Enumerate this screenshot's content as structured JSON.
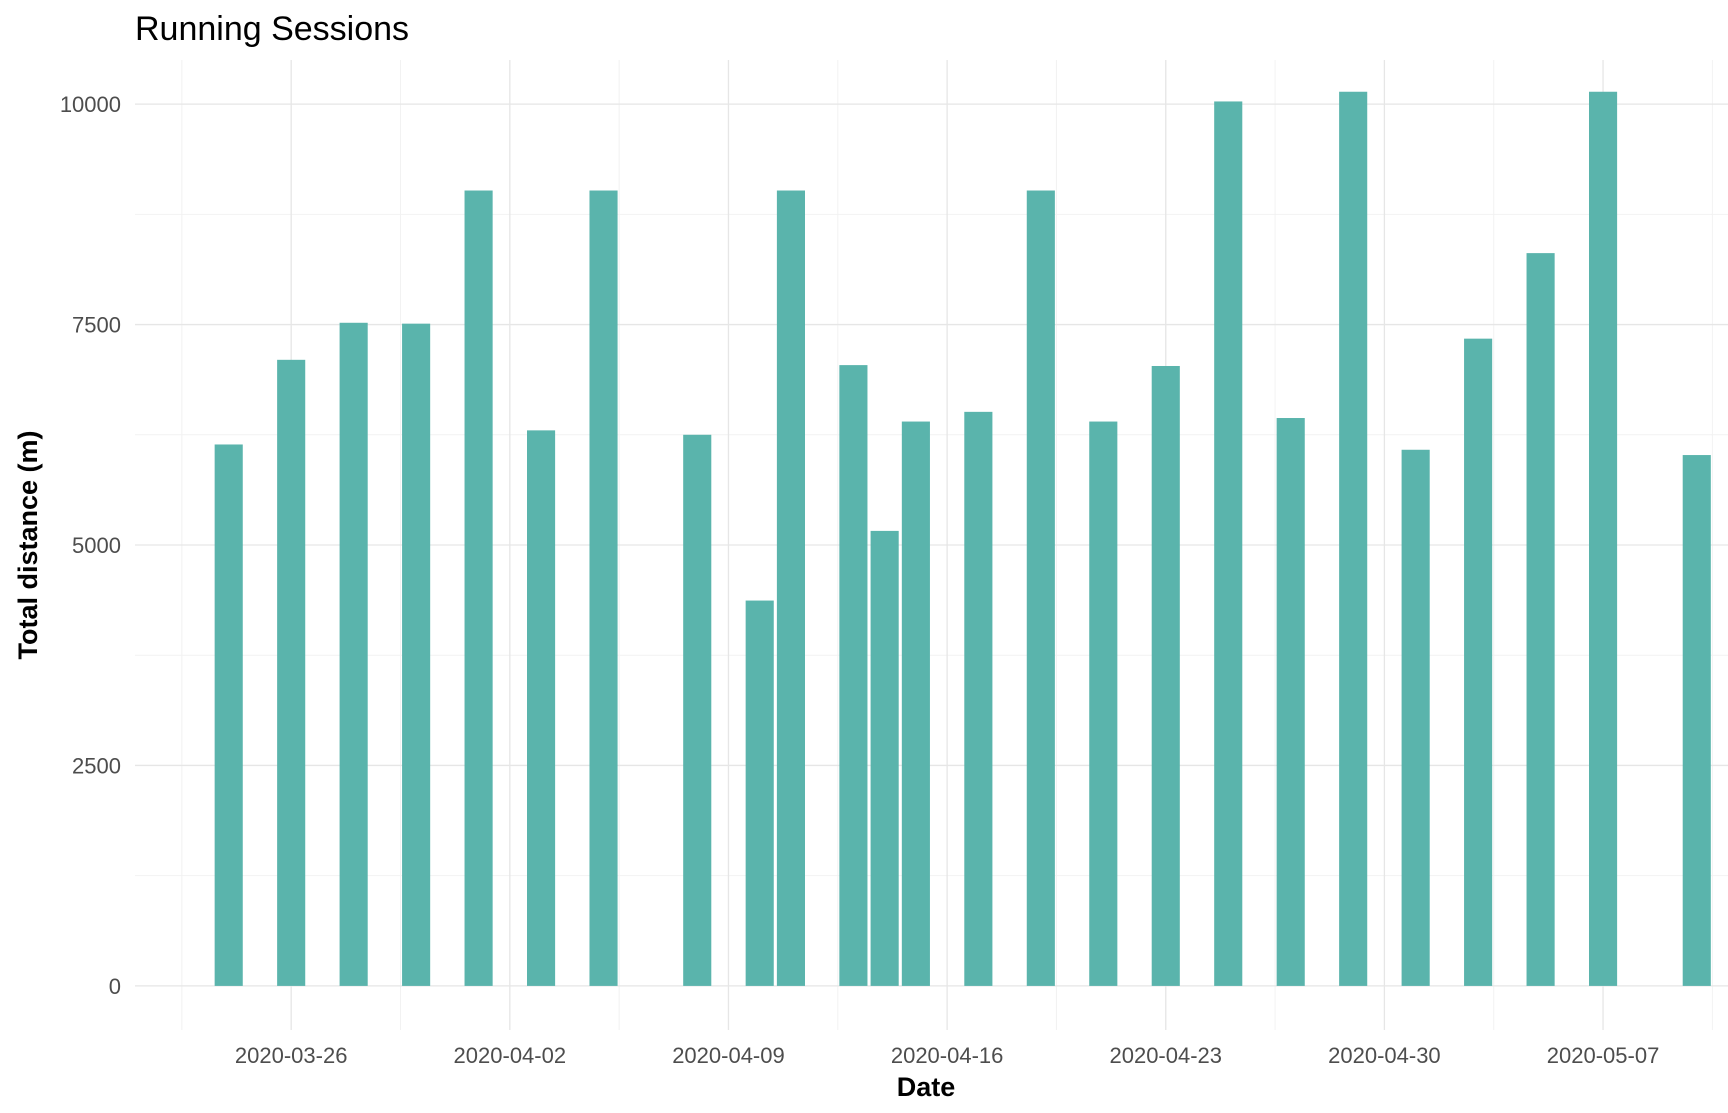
{
  "chart_data": {
    "type": "bar",
    "title": "Running Sessions",
    "xlabel": "Date",
    "ylabel": "Total distance (m)",
    "x_axis": "date",
    "xlim": [
      "2020-03-21",
      "2020-05-11"
    ],
    "ylim": [
      -500,
      10500
    ],
    "y_ticks": [
      0,
      2500,
      5000,
      7500,
      10000
    ],
    "x_ticks": [
      "2020-03-26",
      "2020-04-02",
      "2020-04-09",
      "2020-04-16",
      "2020-04-23",
      "2020-04-30",
      "2020-05-07"
    ],
    "grid": true,
    "bar_color": "#5ab4ac",
    "x": [
      "2020-03-24",
      "2020-03-26",
      "2020-03-28",
      "2020-03-30",
      "2020-04-01",
      "2020-04-03",
      "2020-04-05",
      "2020-04-08",
      "2020-04-10",
      "2020-04-11",
      "2020-04-13",
      "2020-04-14",
      "2020-04-15",
      "2020-04-17",
      "2020-04-19",
      "2020-04-21",
      "2020-04-23",
      "2020-04-25",
      "2020-04-27",
      "2020-04-29",
      "2020-05-01",
      "2020-05-03",
      "2020-05-05",
      "2020-05-07",
      "2020-05-10"
    ],
    "values": [
      6140,
      7100,
      7520,
      7510,
      9020,
      6300,
      9020,
      6250,
      4370,
      9020,
      7040,
      5160,
      6400,
      6510,
      9020,
      6400,
      7030,
      10030,
      6440,
      10140,
      6080,
      7340,
      8310,
      10140,
      6020
    ]
  }
}
